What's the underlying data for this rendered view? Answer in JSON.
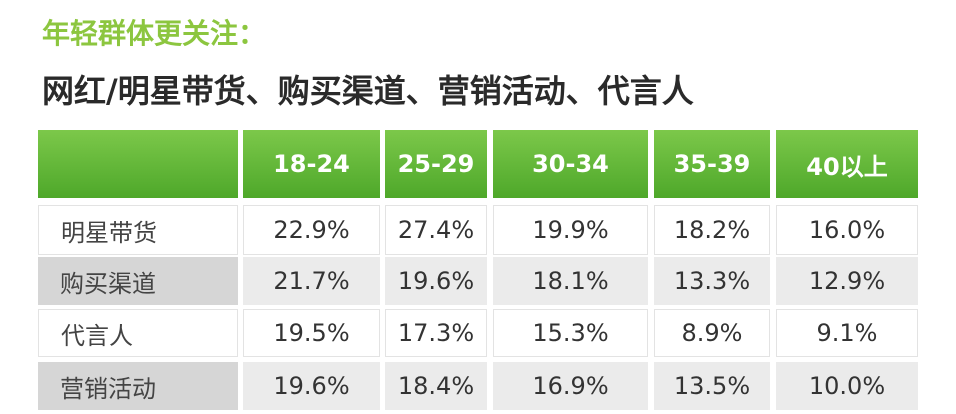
{
  "header": {
    "title": "年轻群体更关注：",
    "subtitle": "网红/明星带货、购买渠道、营销活动、代言人"
  },
  "table": {
    "columns": [
      "18-24",
      "25-29",
      "30-34",
      "35-39",
      "40以上"
    ],
    "rows": [
      [
        "明星带货",
        "22.9%",
        "27.4%",
        "19.9%",
        "18.2%",
        "16.0%"
      ],
      [
        "购买渠道",
        "21.7%",
        "19.6%",
        "18.1%",
        "13.3%",
        "12.9%"
      ],
      [
        "代言人",
        "19.5%",
        "17.3%",
        "15.3%",
        "8.9%",
        "9.1%"
      ],
      [
        "营销活动",
        "19.6%",
        "18.4%",
        "16.9%",
        "13.5%",
        "10.0%"
      ]
    ]
  }
}
